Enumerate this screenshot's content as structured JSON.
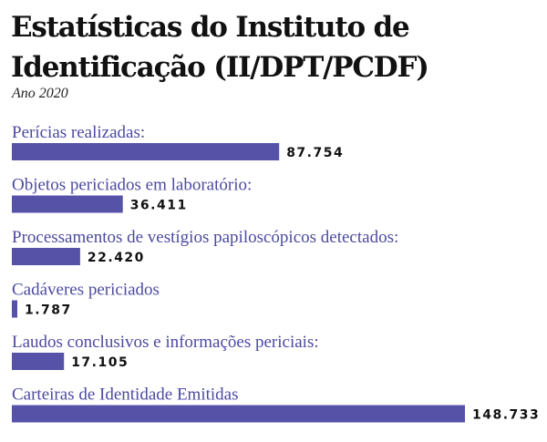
{
  "header": {
    "title": "Estatísticas do Instituto de Identificação (II/DPT/PCDF)",
    "subtitle": "Ano 2020"
  },
  "colors": {
    "bar": "#5552a8",
    "label": "#4c4aa0",
    "value": "#111111"
  },
  "chart_data": {
    "type": "bar",
    "orientation": "horizontal",
    "title": "Estatísticas do Instituto de Identificação (II/DPT/PCDF)",
    "subtitle": "Ano 2020",
    "categories": [
      "Perícias realizadas:",
      "Objetos periciados em laboratório:",
      "Processamentos de vestígios papiloscópicos detectados:",
      "Cadáveres periciados",
      "Laudos conclusivos e informações periciais:",
      "Carteiras de Identidade Emitidas"
    ],
    "values": [
      87754,
      36411,
      22420,
      1787,
      17105,
      148733
    ],
    "value_labels": [
      "87.754",
      "36.411",
      "22.420",
      "1.787",
      "17.105",
      "148.733"
    ],
    "xlim": [
      0,
      148733
    ],
    "grid": false,
    "legend": "none"
  }
}
